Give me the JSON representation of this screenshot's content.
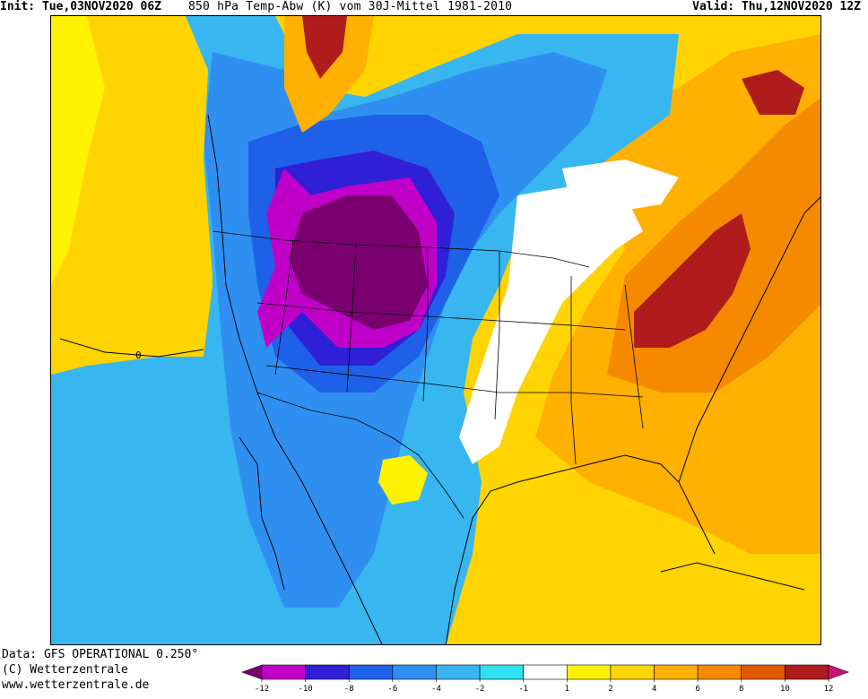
{
  "header": {
    "init": "Init: Tue,03NOV2020 06Z",
    "title": "850 hPa Temp-Abw (K) vom 30J-Mittel 1981-2010",
    "valid": "Valid: Thu,12NOV2020 12Z"
  },
  "footer": {
    "data_source": "Data: GFS OPERATIONAL 0.250°",
    "copyright": "(C) Wetterzentrale",
    "website": "www.wetterzentrale.de"
  },
  "legend": {
    "ticks": [
      "-12",
      "-10",
      "-8",
      "-6",
      "-4",
      "-2",
      "-1",
      "1",
      "2",
      "4",
      "6",
      "8",
      "10",
      "12"
    ],
    "colors": [
      "#7a0070",
      "#c000c8",
      "#2f1fd6",
      "#1f60e8",
      "#2f8ff0",
      "#38b6f0",
      "#2ee0f0",
      "#ffffff",
      "#fff200",
      "#ffd400",
      "#ffb000",
      "#f58a00",
      "#e05a00",
      "#b01c1c",
      "#d0107a"
    ]
  },
  "map": {
    "contour_label": "0"
  }
}
